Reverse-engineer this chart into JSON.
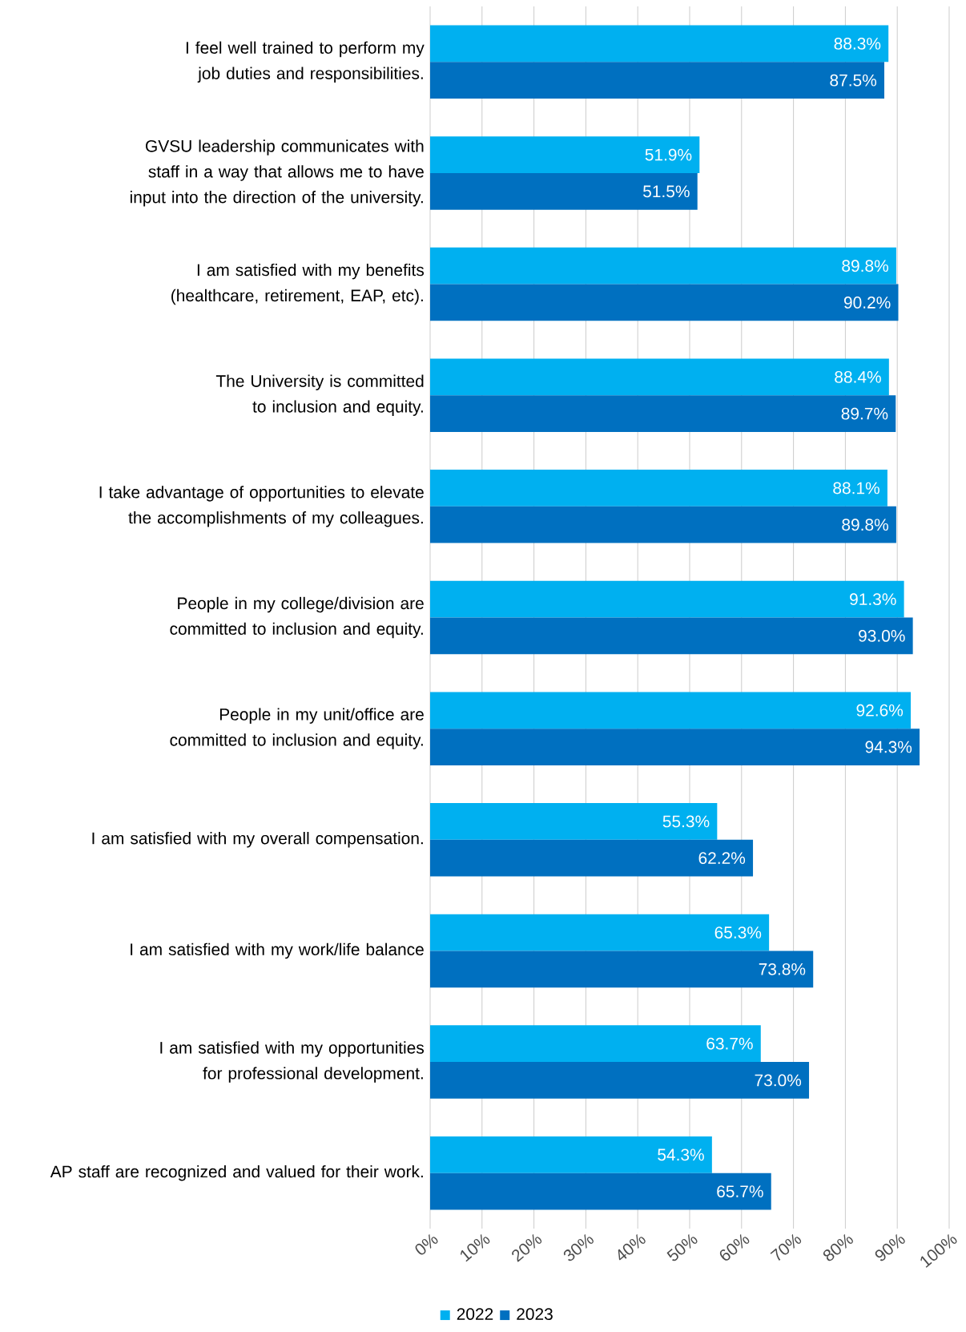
{
  "chart_data": {
    "type": "bar",
    "orientation": "horizontal",
    "categories": [
      "I feel well trained to perform my job duties and responsibilities.",
      "GVSU leadership communicates with staff in a way that allows me to have input into the direction of the university.",
      "I am satisfied with my benefits (healthcare, retirement, EAP, etc).",
      "The University is committed to inclusion and equity.",
      "I take advantage of opportunities to elevate the accomplishments of my colleagues.",
      "People in my college/division are committed to inclusion and equity.",
      "People in my unit/office are committed to inclusion and equity.",
      "I am satisfied with my overall compensation.",
      "I am satisfied with my work/life balance",
      "I am satisfied with my opportunities for professional development.",
      "AP staff are recognized and valued for their work."
    ],
    "series": [
      {
        "name": "2022",
        "color": "#00b0f0",
        "values": [
          88.3,
          51.9,
          89.8,
          88.4,
          88.1,
          91.3,
          92.6,
          55.3,
          65.3,
          63.7,
          54.3
        ],
        "value_labels": [
          "88.3%",
          "51.9%",
          "89.8%",
          "88.4%",
          "88.1%",
          "91.3%",
          "92.6%",
          "55.3%",
          "65.3%",
          "63.7%",
          "54.3%"
        ]
      },
      {
        "name": "2023",
        "color": "#0070c0",
        "values": [
          87.5,
          51.5,
          90.2,
          89.7,
          89.8,
          93.0,
          94.3,
          62.2,
          73.8,
          73.0,
          65.7
        ],
        "value_labels": [
          "87.5%",
          "51.5%",
          "90.2%",
          "89.7%",
          "89.8%",
          "93.0%",
          "94.3%",
          "62.2%",
          "73.8%",
          "73.0%",
          "65.7%"
        ]
      }
    ],
    "xlim": [
      0,
      100
    ],
    "xticks": [
      {
        "value": 0,
        "label": "0%"
      },
      {
        "value": 10,
        "label": "10%"
      },
      {
        "value": 20,
        "label": "20%"
      },
      {
        "value": 30,
        "label": "30%"
      },
      {
        "value": 40,
        "label": "40%"
      },
      {
        "value": 50,
        "label": "50%"
      },
      {
        "value": 60,
        "label": "60%"
      },
      {
        "value": 70,
        "label": "70%"
      },
      {
        "value": 80,
        "label": "80%"
      },
      {
        "value": 90,
        "label": "90%"
      },
      {
        "value": 100,
        "label": "100%"
      }
    ],
    "grid": "x",
    "legend": "bottom"
  }
}
